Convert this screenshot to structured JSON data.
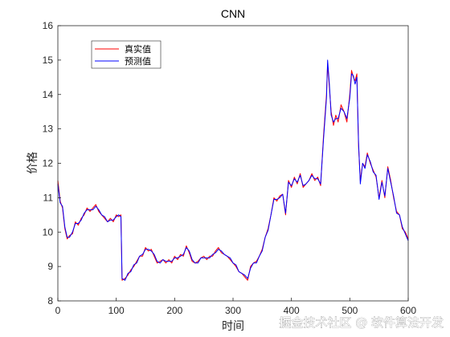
{
  "chart_data": {
    "type": "line",
    "title": "CNN",
    "xlabel": "时间",
    "ylabel": "价格",
    "xlim": [
      0,
      600
    ],
    "ylim": [
      8,
      16
    ],
    "xticks": [
      0,
      100,
      200,
      300,
      400,
      500,
      600
    ],
    "yticks": [
      8,
      9,
      10,
      11,
      12,
      13,
      14,
      15,
      16
    ],
    "xtick_labels": [
      "0",
      "100",
      "200",
      "300",
      "400",
      "500",
      "600"
    ],
    "ytick_labels": [
      "8",
      "9",
      "10",
      "11",
      "12",
      "13",
      "14",
      "15",
      "16"
    ],
    "grid": false,
    "legend_position": "top-left",
    "series": [
      {
        "name": "真实值",
        "color": "#ff0000",
        "points": [
          [
            0,
            11.5
          ],
          [
            4,
            10.9
          ],
          [
            8,
            10.7
          ],
          [
            12,
            10.1
          ],
          [
            16,
            9.8
          ],
          [
            20,
            9.9
          ],
          [
            25,
            9.95
          ],
          [
            30,
            10.3
          ],
          [
            35,
            10.2
          ],
          [
            40,
            10.4
          ],
          [
            45,
            10.5
          ],
          [
            50,
            10.7
          ],
          [
            55,
            10.6
          ],
          [
            60,
            10.7
          ],
          [
            65,
            10.8
          ],
          [
            70,
            10.6
          ],
          [
            75,
            10.5
          ],
          [
            80,
            10.4
          ],
          [
            85,
            10.3
          ],
          [
            90,
            10.4
          ],
          [
            95,
            10.3
          ],
          [
            100,
            10.5
          ],
          [
            104,
            10.45
          ],
          [
            108,
            10.5
          ],
          [
            110,
            8.6
          ],
          [
            115,
            8.65
          ],
          [
            120,
            8.75
          ],
          [
            125,
            8.9
          ],
          [
            130,
            9.0
          ],
          [
            135,
            9.15
          ],
          [
            140,
            9.3
          ],
          [
            145,
            9.3
          ],
          [
            150,
            9.55
          ],
          [
            155,
            9.45
          ],
          [
            160,
            9.5
          ],
          [
            165,
            9.3
          ],
          [
            170,
            9.1
          ],
          [
            175,
            9.15
          ],
          [
            180,
            9.2
          ],
          [
            185,
            9.1
          ],
          [
            190,
            9.2
          ],
          [
            195,
            9.1
          ],
          [
            200,
            9.3
          ],
          [
            205,
            9.2
          ],
          [
            210,
            9.35
          ],
          [
            215,
            9.3
          ],
          [
            220,
            9.6
          ],
          [
            225,
            9.4
          ],
          [
            230,
            9.15
          ],
          [
            235,
            9.1
          ],
          [
            240,
            9.15
          ],
          [
            245,
            9.25
          ],
          [
            250,
            9.3
          ],
          [
            255,
            9.2
          ],
          [
            260,
            9.3
          ],
          [
            265,
            9.3
          ],
          [
            270,
            9.45
          ],
          [
            275,
            9.55
          ],
          [
            280,
            9.4
          ],
          [
            285,
            9.35
          ],
          [
            290,
            9.3
          ],
          [
            295,
            9.2
          ],
          [
            300,
            9.1
          ],
          [
            305,
            9.0
          ],
          [
            310,
            8.85
          ],
          [
            315,
            8.8
          ],
          [
            320,
            8.7
          ],
          [
            325,
            8.6
          ],
          [
            330,
            9.0
          ],
          [
            335,
            9.1
          ],
          [
            340,
            9.15
          ],
          [
            345,
            9.3
          ],
          [
            350,
            9.5
          ],
          [
            355,
            9.85
          ],
          [
            360,
            10.1
          ],
          [
            365,
            10.5
          ],
          [
            370,
            11.0
          ],
          [
            375,
            10.9
          ],
          [
            380,
            11.05
          ],
          [
            385,
            11.1
          ],
          [
            390,
            10.5
          ],
          [
            395,
            11.5
          ],
          [
            400,
            11.3
          ],
          [
            405,
            11.6
          ],
          [
            410,
            11.4
          ],
          [
            415,
            11.7
          ],
          [
            420,
            11.3
          ],
          [
            425,
            11.4
          ],
          [
            430,
            11.5
          ],
          [
            435,
            11.7
          ],
          [
            440,
            11.5
          ],
          [
            445,
            11.6
          ],
          [
            450,
            11.35
          ],
          [
            455,
            12.8
          ],
          [
            460,
            14.0
          ],
          [
            462,
            14.9
          ],
          [
            465,
            14.2
          ],
          [
            468,
            13.5
          ],
          [
            472,
            13.1
          ],
          [
            476,
            13.4
          ],
          [
            480,
            13.2
          ],
          [
            485,
            13.7
          ],
          [
            490,
            13.5
          ],
          [
            495,
            13.2
          ],
          [
            500,
            14.0
          ],
          [
            503,
            14.7
          ],
          [
            506,
            14.5
          ],
          [
            509,
            14.4
          ],
          [
            512,
            14.6
          ],
          [
            515,
            12.5
          ],
          [
            518,
            11.5
          ],
          [
            522,
            12.0
          ],
          [
            526,
            11.9
          ],
          [
            530,
            12.3
          ],
          [
            535,
            12.0
          ],
          [
            540,
            11.8
          ],
          [
            545,
            11.6
          ],
          [
            550,
            11.0
          ],
          [
            555,
            11.5
          ],
          [
            560,
            11.0
          ],
          [
            565,
            11.9
          ],
          [
            570,
            11.5
          ],
          [
            575,
            11.0
          ],
          [
            580,
            10.6
          ],
          [
            585,
            10.5
          ],
          [
            590,
            10.1
          ],
          [
            595,
            10.0
          ],
          [
            600,
            9.8
          ]
        ]
      },
      {
        "name": "预测值",
        "color": "#0000ff",
        "points": [
          [
            0,
            11.4
          ],
          [
            4,
            10.85
          ],
          [
            8,
            10.75
          ],
          [
            12,
            10.15
          ],
          [
            16,
            9.85
          ],
          [
            20,
            9.85
          ],
          [
            25,
            10.0
          ],
          [
            30,
            10.25
          ],
          [
            35,
            10.25
          ],
          [
            40,
            10.35
          ],
          [
            45,
            10.55
          ],
          [
            50,
            10.65
          ],
          [
            55,
            10.65
          ],
          [
            60,
            10.65
          ],
          [
            65,
            10.75
          ],
          [
            70,
            10.65
          ],
          [
            75,
            10.5
          ],
          [
            80,
            10.45
          ],
          [
            85,
            10.3
          ],
          [
            90,
            10.35
          ],
          [
            95,
            10.35
          ],
          [
            100,
            10.45
          ],
          [
            104,
            10.5
          ],
          [
            108,
            10.45
          ],
          [
            110,
            8.65
          ],
          [
            115,
            8.6
          ],
          [
            120,
            8.8
          ],
          [
            125,
            8.85
          ],
          [
            130,
            9.05
          ],
          [
            135,
            9.1
          ],
          [
            140,
            9.3
          ],
          [
            145,
            9.35
          ],
          [
            150,
            9.5
          ],
          [
            155,
            9.5
          ],
          [
            160,
            9.45
          ],
          [
            165,
            9.35
          ],
          [
            170,
            9.15
          ],
          [
            175,
            9.1
          ],
          [
            180,
            9.2
          ],
          [
            185,
            9.15
          ],
          [
            190,
            9.15
          ],
          [
            195,
            9.15
          ],
          [
            200,
            9.25
          ],
          [
            205,
            9.25
          ],
          [
            210,
            9.3
          ],
          [
            215,
            9.35
          ],
          [
            220,
            9.55
          ],
          [
            225,
            9.45
          ],
          [
            230,
            9.2
          ],
          [
            235,
            9.1
          ],
          [
            240,
            9.1
          ],
          [
            245,
            9.25
          ],
          [
            250,
            9.25
          ],
          [
            255,
            9.25
          ],
          [
            260,
            9.25
          ],
          [
            265,
            9.35
          ],
          [
            270,
            9.4
          ],
          [
            275,
            9.5
          ],
          [
            280,
            9.45
          ],
          [
            285,
            9.35
          ],
          [
            290,
            9.3
          ],
          [
            295,
            9.25
          ],
          [
            300,
            9.1
          ],
          [
            305,
            9.05
          ],
          [
            310,
            8.85
          ],
          [
            315,
            8.8
          ],
          [
            320,
            8.75
          ],
          [
            325,
            8.65
          ],
          [
            330,
            8.95
          ],
          [
            335,
            9.1
          ],
          [
            340,
            9.1
          ],
          [
            345,
            9.3
          ],
          [
            350,
            9.45
          ],
          [
            355,
            9.85
          ],
          [
            360,
            10.05
          ],
          [
            365,
            10.5
          ],
          [
            370,
            10.95
          ],
          [
            375,
            10.95
          ],
          [
            380,
            11.0
          ],
          [
            385,
            11.1
          ],
          [
            390,
            10.55
          ],
          [
            395,
            11.45
          ],
          [
            400,
            11.35
          ],
          [
            405,
            11.55
          ],
          [
            410,
            11.45
          ],
          [
            415,
            11.65
          ],
          [
            420,
            11.35
          ],
          [
            425,
            11.4
          ],
          [
            430,
            11.5
          ],
          [
            435,
            11.65
          ],
          [
            440,
            11.55
          ],
          [
            445,
            11.55
          ],
          [
            450,
            11.4
          ],
          [
            455,
            12.7
          ],
          [
            460,
            13.9
          ],
          [
            462,
            15.0
          ],
          [
            465,
            14.3
          ],
          [
            468,
            13.4
          ],
          [
            472,
            13.2
          ],
          [
            476,
            13.3
          ],
          [
            480,
            13.3
          ],
          [
            485,
            13.6
          ],
          [
            490,
            13.5
          ],
          [
            495,
            13.3
          ],
          [
            500,
            13.9
          ],
          [
            503,
            14.6
          ],
          [
            506,
            14.55
          ],
          [
            509,
            14.3
          ],
          [
            512,
            14.5
          ],
          [
            515,
            12.6
          ],
          [
            518,
            11.4
          ],
          [
            522,
            12.0
          ],
          [
            526,
            11.85
          ],
          [
            530,
            12.25
          ],
          [
            535,
            12.05
          ],
          [
            540,
            11.75
          ],
          [
            545,
            11.65
          ],
          [
            550,
            10.95
          ],
          [
            555,
            11.45
          ],
          [
            560,
            11.05
          ],
          [
            565,
            11.85
          ],
          [
            570,
            11.45
          ],
          [
            575,
            11.05
          ],
          [
            580,
            10.55
          ],
          [
            585,
            10.5
          ],
          [
            590,
            10.15
          ],
          [
            595,
            9.95
          ],
          [
            600,
            9.75
          ]
        ]
      }
    ]
  },
  "watermark": "掘金技术社区 @ 软件算法开发"
}
